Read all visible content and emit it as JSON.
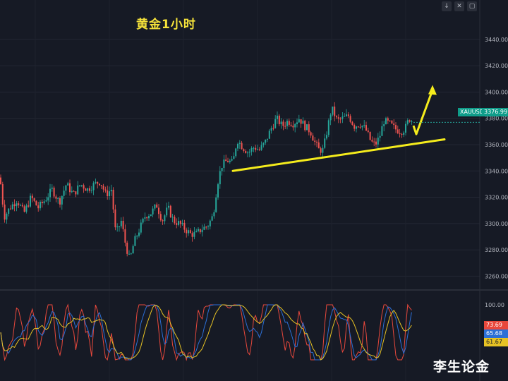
{
  "chart_data": {
    "type": "candlestick",
    "title": "黄金1小时",
    "symbol": "XAUUSD",
    "last_price": "3376.99",
    "price_axis": {
      "ylim": [
        3250,
        3470
      ],
      "ticks": [
        3260,
        3280,
        3300,
        3320,
        3340,
        3360,
        3380,
        3400,
        3420,
        3440
      ],
      "tick_labels": [
        "3260.00",
        "3280.00",
        "3300.00",
        "3320.00",
        "3340.00",
        "3360.00",
        "3380.00",
        "3400.00",
        "3420.00",
        "3440.00"
      ]
    },
    "close_path": [
      [
        0,
        3335
      ],
      [
        6,
        3305
      ],
      [
        14,
        3312
      ],
      [
        24,
        3318
      ],
      [
        34,
        3308
      ],
      [
        44,
        3320
      ],
      [
        54,
        3312
      ],
      [
        64,
        3318
      ],
      [
        74,
        3326
      ],
      [
        84,
        3316
      ],
      [
        94,
        3330
      ],
      [
        104,
        3322
      ],
      [
        114,
        3330
      ],
      [
        124,
        3326
      ],
      [
        134,
        3330
      ],
      [
        142,
        3332
      ],
      [
        150,
        3322
      ],
      [
        158,
        3326
      ],
      [
        164,
        3292
      ],
      [
        172,
        3302
      ],
      [
        178,
        3284
      ],
      [
        184,
        3272
      ],
      [
        190,
        3286
      ],
      [
        198,
        3296
      ],
      [
        206,
        3306
      ],
      [
        214,
        3308
      ],
      [
        222,
        3314
      ],
      [
        230,
        3302
      ],
      [
        238,
        3312
      ],
      [
        246,
        3302
      ],
      [
        254,
        3300
      ],
      [
        262,
        3296
      ],
      [
        270,
        3292
      ],
      [
        278,
        3292
      ],
      [
        286,
        3296
      ],
      [
        294,
        3298
      ],
      [
        302,
        3306
      ],
      [
        308,
        3330
      ],
      [
        314,
        3344
      ],
      [
        322,
        3348
      ],
      [
        330,
        3346
      ],
      [
        336,
        3364
      ],
      [
        344,
        3358
      ],
      [
        352,
        3354
      ],
      [
        360,
        3358
      ],
      [
        368,
        3356
      ],
      [
        376,
        3362
      ],
      [
        384,
        3372
      ],
      [
        392,
        3380
      ],
      [
        400,
        3374
      ],
      [
        408,
        3378
      ],
      [
        416,
        3376
      ],
      [
        424,
        3380
      ],
      [
        432,
        3374
      ],
      [
        440,
        3370
      ],
      [
        446,
        3362
      ],
      [
        452,
        3356
      ],
      [
        458,
        3356
      ],
      [
        464,
        3372
      ],
      [
        470,
        3388
      ],
      [
        478,
        3378
      ],
      [
        486,
        3380
      ],
      [
        494,
        3382
      ],
      [
        502,
        3374
      ],
      [
        510,
        3376
      ],
      [
        518,
        3372
      ],
      [
        526,
        3362
      ],
      [
        532,
        3360
      ],
      [
        538,
        3366
      ],
      [
        544,
        3378
      ],
      [
        552,
        3376
      ],
      [
        560,
        3372
      ],
      [
        568,
        3370
      ],
      [
        574,
        3372
      ],
      [
        580,
        3380
      ],
      [
        586,
        3377
      ]
    ],
    "trendline": {
      "x": [
        330,
        630
      ],
      "y": [
        3340,
        3364
      ]
    },
    "arrow": {
      "x": [
        590,
        612
      ],
      "y": [
        3368,
        3400
      ]
    },
    "oscillator": {
      "ylim": [
        0,
        100
      ],
      "ticks": [
        100
      ],
      "tick_labels": [
        "100.00"
      ],
      "values": [
        "73.69",
        "65.68",
        "61.67"
      ],
      "colors": [
        "#e8483c",
        "#2c6fd6",
        "#e6c224"
      ]
    }
  },
  "toolbar": {
    "down": "↓",
    "close": "✕",
    "expand": "▢"
  },
  "watermark": "李生论金",
  "colors": {
    "up": "#26a69a",
    "down": "#ef5350",
    "trendline": "#f5ec1c",
    "arrow": "#f5ec1c"
  }
}
